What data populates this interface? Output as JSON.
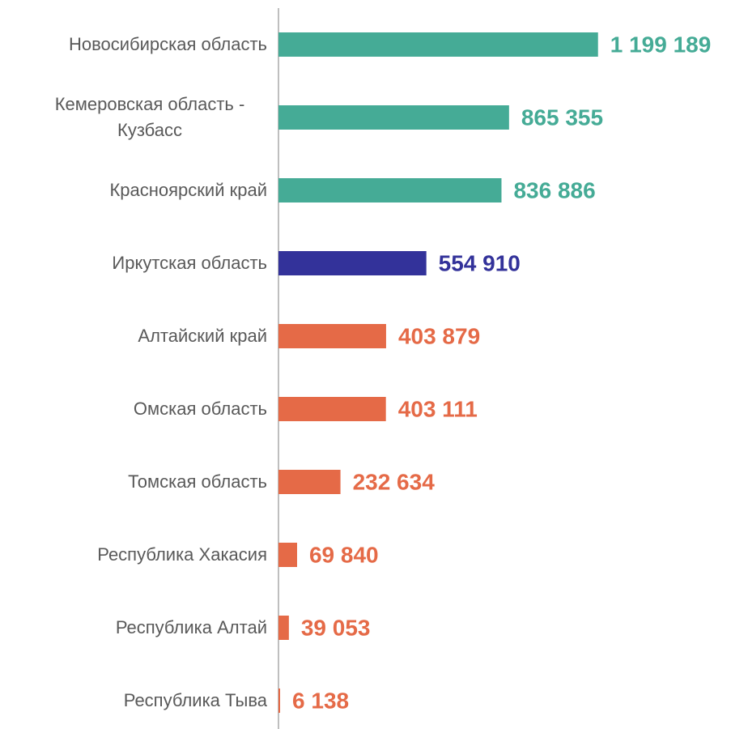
{
  "chart_data": {
    "type": "hbar",
    "categories": [
      "Новосибирская область",
      "Кемеровская область - Кузбасс",
      "Красноярский край",
      "Иркутская область",
      "Алтайский край",
      "Омская область",
      "Томская область",
      "Республика Хакасия",
      "Республика Алтай",
      "Республика Тыва"
    ],
    "values": [
      1199189,
      865355,
      836886,
      554910,
      403879,
      403111,
      232634,
      69840,
      39053,
      6138
    ],
    "value_labels": [
      "1 199 189",
      "865 355",
      "836 886",
      "554 910",
      "403 879",
      "403 111",
      "232 634",
      "69 840",
      "39 053",
      "6 138"
    ],
    "colors": [
      "#45ab96",
      "#45ab96",
      "#45ab96",
      "#33329a",
      "#e56a47",
      "#e56a47",
      "#e56a47",
      "#e56a47",
      "#e56a47",
      "#e56a47"
    ],
    "xlim": [
      0,
      1200000
    ]
  }
}
